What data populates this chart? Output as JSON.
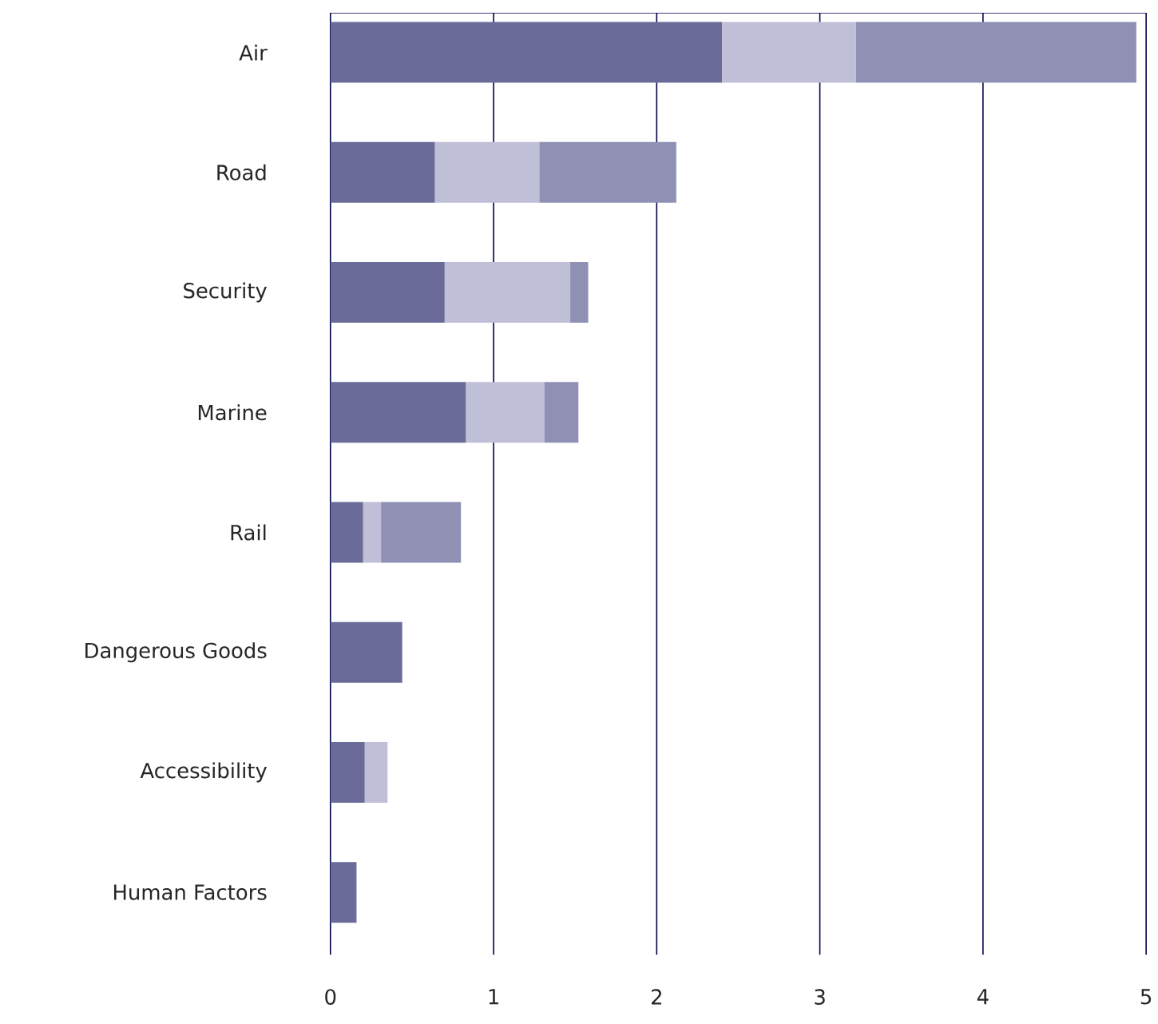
{
  "chart_data": {
    "type": "bar",
    "orientation": "horizontal",
    "stacked": true,
    "categories": [
      "Air",
      "Road",
      "Security",
      "Marine",
      "Rail",
      "Dangerous Goods",
      "Accessibility",
      "Human Factors"
    ],
    "series": [
      {
        "color": "#6b6b9a",
        "values": [
          2.4,
          0.64,
          0.7,
          0.83,
          0.2,
          0.44,
          0.21,
          0.16
        ]
      },
      {
        "color": "#c0bfd8",
        "values": [
          0.82,
          0.64,
          0.77,
          0.48,
          0.11,
          0,
          0.14,
          0
        ]
      },
      {
        "color": "#9090b4",
        "values": [
          1.72,
          0.84,
          0.11,
          0.21,
          0.49,
          0,
          0,
          0
        ]
      }
    ],
    "xlim": [
      0,
      5
    ],
    "xticks": [
      0,
      1,
      2,
      3,
      4,
      5
    ],
    "grid": "x"
  }
}
